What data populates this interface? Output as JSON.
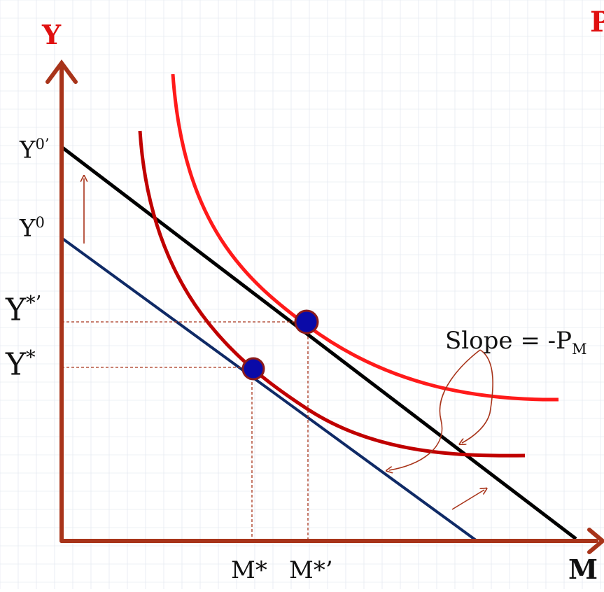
{
  "axes": {
    "y_label": "Y",
    "x_label": "M"
  },
  "corner_text": "P",
  "labels": {
    "y0_prime": {
      "base": "Y",
      "sup": "0’"
    },
    "y0": {
      "base": "Y",
      "sup": "0"
    },
    "y_star_prime": {
      "base": "Y",
      "sup": "*’"
    },
    "y_star": {
      "base": "Y",
      "sup": "*"
    },
    "m_star": "M*",
    "m_star_prime": "M*’"
  },
  "slope_label": {
    "text": "Slope = -P",
    "sub": "M"
  },
  "colors": {
    "axis": "#a8341a",
    "grid": "#dde3ec",
    "budget_initial": "#0f2a66",
    "budget_new": "#000000",
    "indifference_low": "#c00000",
    "indifference_high": "#ff1a1a",
    "point_fill": "#0a0aa8",
    "point_stroke": "#8b1a1a",
    "guide_lines": "#a8341a",
    "annotation_arrows": "#a8341a",
    "axis_label_color": "#e01010"
  }
}
